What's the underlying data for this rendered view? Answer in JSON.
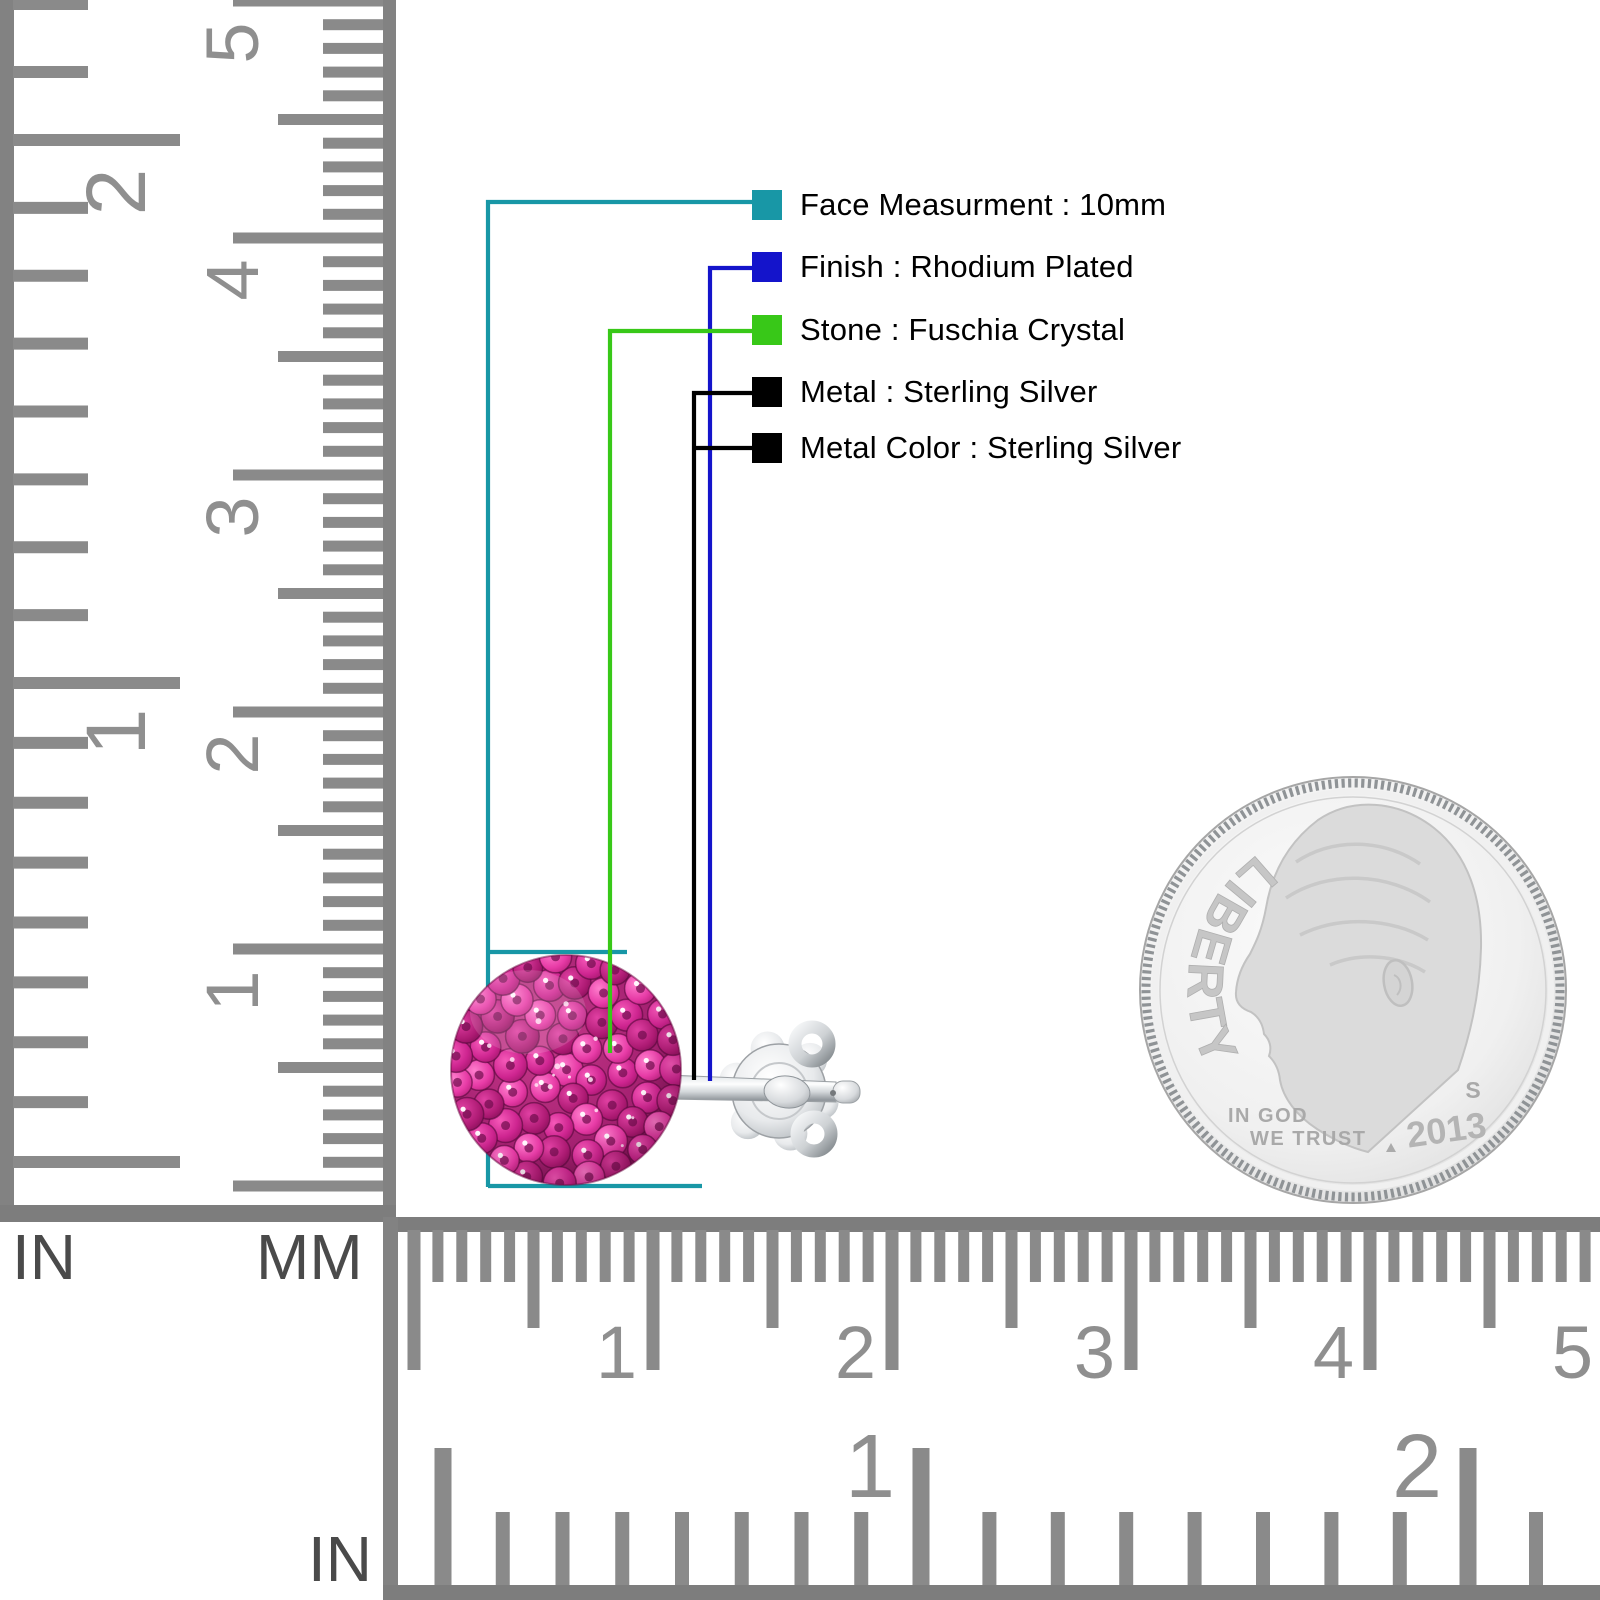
{
  "annotations": {
    "items": [
      {
        "name": "face-measurement",
        "label": "Face Measurment : 10mm",
        "color": "#1897A6"
      },
      {
        "name": "finish",
        "label": "Finish : Rhodium Plated",
        "color": "#1414CB"
      },
      {
        "name": "stone",
        "label": "Stone : Fuschia Crystal",
        "color": "#38C818"
      },
      {
        "name": "metal",
        "label": "Metal : Sterling Silver",
        "color": "#000000"
      },
      {
        "name": "metal-color",
        "label": "Metal Color : Sterling Silver",
        "color": "#000000"
      }
    ]
  },
  "vertical_ruler": {
    "unit_left": "IN",
    "unit_right": "MM",
    "inch_numbers": [
      "2",
      "1"
    ],
    "mm_numbers": [
      "5",
      "4",
      "3",
      "2",
      "1"
    ]
  },
  "bottom_ruler": {
    "unit": "IN",
    "cm_numbers": [
      "1",
      "2",
      "3",
      "4",
      "5"
    ],
    "inch_numbers": [
      "1",
      "2"
    ]
  },
  "coin": {
    "legend": "LIBERTY",
    "motto_line1": "IN GOD",
    "motto_line2": "WE TRUST",
    "mint_mark": "S",
    "year": "2013"
  },
  "colors": {
    "ruler_gray": "#8A8A8A",
    "ruler_label_gray": "#4A4A4A",
    "annotation_text": "#000000",
    "crystal_fuchsia": "#D42E95",
    "silver": "#C9CDD0",
    "background": "#FFFFFF"
  }
}
